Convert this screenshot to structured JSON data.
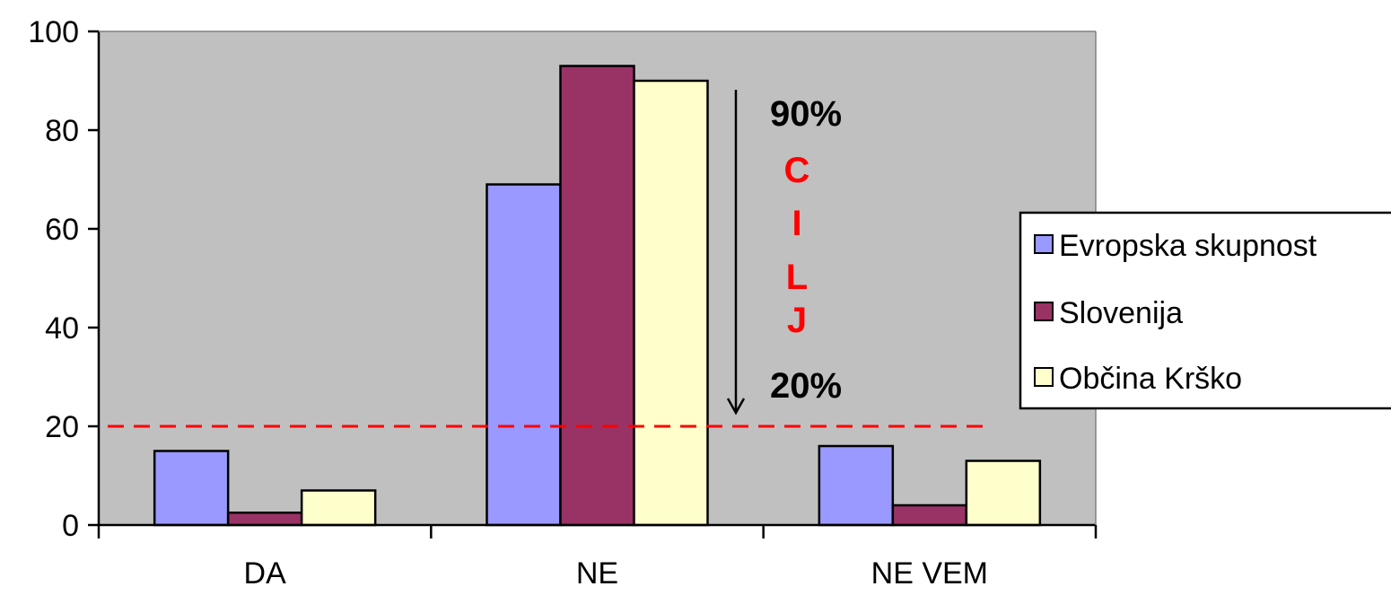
{
  "chart_data": {
    "type": "bar",
    "categories": [
      "DA",
      "NE",
      "NE VEM"
    ],
    "series": [
      {
        "name": "Evropska skupnost",
        "color": "#9999ff",
        "values": [
          15,
          69,
          16
        ]
      },
      {
        "name": "Slovenija",
        "color": "#993366",
        "values": [
          2.5,
          93,
          4
        ]
      },
      {
        "name": "Občina Krško",
        "color": "#ffffcc",
        "values": [
          7,
          90,
          13
        ]
      }
    ],
    "ylim": [
      0,
      100
    ],
    "yticks": [
      "0",
      "20",
      "40",
      "60",
      "80",
      "100"
    ],
    "plot_background": "#c0c0c0",
    "grid": false,
    "legend_position": "right",
    "title": "",
    "xlabel": "",
    "ylabel": "",
    "target_line": {
      "value": 20,
      "color": "#ff0000",
      "style": "dashed"
    },
    "annotations": {
      "arrow": {
        "from": 90,
        "to": 20
      },
      "top_label": "90%",
      "bottom_label": "20%",
      "letters": [
        "C",
        "I",
        "L",
        "J"
      ],
      "letters_color": "#ff0000"
    }
  }
}
